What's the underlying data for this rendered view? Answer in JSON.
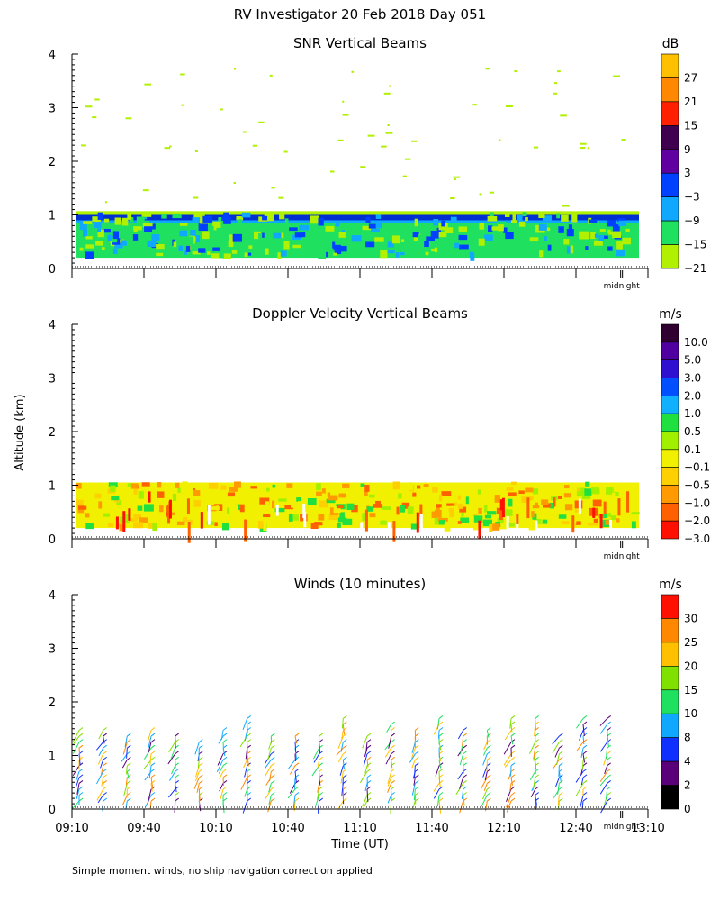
{
  "title": "RV Investigator  20 Feb 2018 Day 051",
  "ylabel": "Altitude (km)",
  "xlabel": "Time (UT)",
  "footnote": "Simple moment winds, no ship navigation correction applied",
  "midnight_label": "midnight",
  "chart_data": [
    {
      "type": "heatmap",
      "title": "SNR Vertical Beams",
      "ylim": [
        0,
        4
      ],
      "yticks": [
        "0",
        "1",
        "2",
        "3",
        "4"
      ],
      "colorbar": {
        "unit": "dB",
        "labels": [
          "27",
          "21",
          "15",
          "9",
          "3",
          "−3",
          "−9",
          "−15",
          "−21"
        ],
        "colors": [
          "#ffc000",
          "#ff8800",
          "#ff2000",
          "#400050",
          "#6000a0",
          "#0040ff",
          "#10a8ff",
          "#20e060",
          "#b0f000"
        ]
      },
      "layers": [
        {
          "bottom_km": 0.2,
          "top_km": 0.9,
          "color": "#20e060"
        },
        {
          "bottom_km": 0.85,
          "top_km": 0.95,
          "color": "#10a8ff"
        },
        {
          "bottom_km": 0.9,
          "top_km": 1.0,
          "color": "#0030d0"
        },
        {
          "bottom_km": 1.0,
          "top_km": 1.07,
          "color": "#b0f000"
        }
      ]
    },
    {
      "type": "heatmap",
      "title": "Doppler Velocity Vertical Beams",
      "ylim": [
        0,
        4
      ],
      "yticks": [
        "0",
        "1",
        "2",
        "3",
        "4"
      ],
      "colorbar": {
        "unit": "m/s",
        "labels": [
          "10.0",
          "5.0",
          "3.0",
          "2.0",
          "1.0",
          "0.5",
          "0.1",
          "−0.1",
          "−0.5",
          "−1.0",
          "−2.0",
          "−3.0"
        ],
        "colors": [
          "#300030",
          "#5000a0",
          "#3010d0",
          "#0050ff",
          "#10b0ff",
          "#20e040",
          "#a0f000",
          "#f0f000",
          "#ffd000",
          "#ff9a00",
          "#ff6000",
          "#ff1000"
        ]
      },
      "layers": [
        {
          "bottom_km": 0.2,
          "top_km": 1.05,
          "color": "#f0f000"
        }
      ]
    },
    {
      "type": "scatter",
      "title": "Winds (10 minutes)",
      "ylim": [
        0,
        4
      ],
      "yticks": [
        "0",
        "1",
        "2",
        "3",
        "4"
      ],
      "colorbar": {
        "unit": "m/s",
        "labels": [
          "30",
          "25",
          "20",
          "15",
          "10",
          "8",
          "4",
          "2",
          "0"
        ],
        "colors": [
          "#ff1000",
          "#ff8800",
          "#ffc000",
          "#80e000",
          "#20e060",
          "#10a8ff",
          "#1030ff",
          "#5a0078",
          "#000000"
        ]
      },
      "x": [
        "09:10",
        "09:20",
        "09:30",
        "09:40",
        "09:50",
        "10:00",
        "10:10",
        "10:20",
        "10:30",
        "10:40",
        "10:50",
        "11:00",
        "11:10",
        "11:20",
        "11:30",
        "11:40",
        "11:50",
        "12:00",
        "12:10",
        "12:20",
        "12:30",
        "12:40",
        "12:50"
      ],
      "wind_top_km": [
        1.5,
        1.5,
        1.4,
        1.5,
        1.4,
        1.3,
        1.5,
        1.7,
        1.4,
        1.4,
        1.4,
        1.8,
        1.4,
        1.6,
        1.5,
        1.8,
        1.5,
        1.5,
        1.8,
        1.7,
        1.4,
        1.7,
        1.7
      ]
    }
  ],
  "xaxis": {
    "ticks": [
      "09:10",
      "09:40",
      "10:10",
      "10:40",
      "11:10",
      "11:40",
      "12:10",
      "12:40",
      "13:10"
    ],
    "range_minutes": [
      550,
      790
    ]
  }
}
